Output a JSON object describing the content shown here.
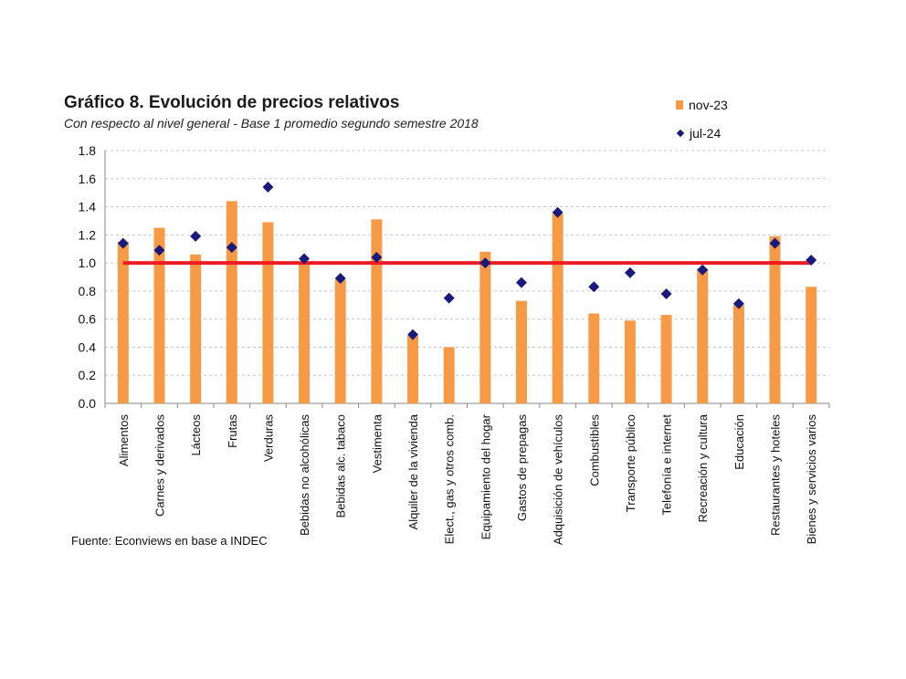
{
  "title": "Gráfico 8. Evolución de precios relativos",
  "subtitle": "Con respecto al nivel general - Base 1 promedio segundo semestre 2018",
  "source": "Fuente: Econviews en base a INDEC",
  "chart_data": {
    "type": "bar",
    "categories": [
      "Alimentos",
      "Carnes y derivados",
      "Lácteos",
      "Frutas",
      "Verduras",
      "Bebidas no alcohólicas",
      "Bebidas alc. tabaco",
      "Vestimenta",
      "Alquiler de la vivienda",
      "Elect., gas y otros comb.",
      "Equipamiento del hogar",
      "Gastos de prepagas",
      "Adquisición de vehículos",
      "Combustibles",
      "Transporte público",
      "Telefonía e internet",
      "Recreación y cultura",
      "Educación",
      "Restaurantes y hoteles",
      "Bienes y servicios varios"
    ],
    "series": [
      {
        "name": "nov-23",
        "kind": "bar",
        "color": "#F79A46",
        "values": [
          1.15,
          1.25,
          1.06,
          1.44,
          1.29,
          1.01,
          0.88,
          1.31,
          0.48,
          0.4,
          1.08,
          0.73,
          1.35,
          0.64,
          0.59,
          0.63,
          0.96,
          0.7,
          1.19,
          0.83
        ]
      },
      {
        "name": "jul-24",
        "kind": "marker",
        "marker": "diamond",
        "color": "#1a1a7c",
        "values": [
          1.14,
          1.09,
          1.19,
          1.11,
          1.54,
          1.03,
          0.89,
          1.04,
          0.49,
          0.75,
          1.0,
          0.86,
          1.36,
          0.83,
          0.93,
          0.78,
          0.95,
          0.71,
          1.14,
          1.02
        ]
      }
    ],
    "reference_line": {
      "value": 1.0,
      "color": "#ee1c24"
    },
    "ylim": [
      0,
      1.8
    ],
    "yticks": [
      "0.0",
      "0.2",
      "0.4",
      "0.6",
      "0.8",
      "1.0",
      "1.2",
      "1.4",
      "1.6",
      "1.8"
    ],
    "grid": "horizontal dashed",
    "legend_position": "top-right"
  }
}
